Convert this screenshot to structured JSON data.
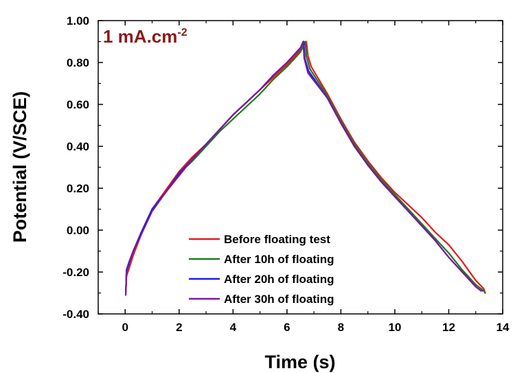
{
  "chart_data": {
    "type": "line",
    "title": "",
    "annotation": {
      "text": "1 mA.cm",
      "superscript": "-2",
      "color": "#8B1A1A"
    },
    "xlabel": "Time (s)",
    "ylabel": "Potential (V/SCE)",
    "xlim": [
      -1,
      14
    ],
    "ylim": [
      -0.4,
      1.0
    ],
    "xticks": [
      0,
      2,
      4,
      6,
      8,
      10,
      12,
      14
    ],
    "xtick_labels": [
      "0",
      "2",
      "4",
      "6",
      "8",
      "10",
      "12",
      "14"
    ],
    "yticks": [
      -0.4,
      -0.2,
      0.0,
      0.2,
      0.4,
      0.6,
      0.8,
      1.0
    ],
    "ytick_labels": [
      "-0.40",
      "-0.20",
      "0.00",
      "0.20",
      "0.40",
      "0.60",
      "0.80",
      "1.00"
    ],
    "grid": false,
    "legend_position": "bottom-center",
    "series": [
      {
        "name": "Before floating test",
        "color": "#e8191a",
        "x": [
          0.02,
          0.05,
          0.15,
          0.3,
          0.6,
          1.0,
          1.5,
          2.0,
          2.5,
          3.0,
          3.5,
          4.0,
          4.5,
          5.0,
          5.5,
          6.0,
          6.5,
          6.72,
          6.78,
          6.9,
          7.5,
          8.0,
          8.5,
          9.0,
          9.5,
          10.0,
          10.5,
          11.0,
          11.5,
          12.0,
          12.5,
          13.0,
          13.3,
          13.35
        ],
        "y": [
          -0.3,
          -0.22,
          -0.18,
          -0.12,
          -0.02,
          0.1,
          0.19,
          0.28,
          0.35,
          0.41,
          0.48,
          0.55,
          0.61,
          0.67,
          0.73,
          0.79,
          0.86,
          0.9,
          0.83,
          0.78,
          0.65,
          0.53,
          0.42,
          0.33,
          0.25,
          0.18,
          0.12,
          0.06,
          -0.01,
          -0.07,
          -0.15,
          -0.24,
          -0.28,
          -0.3
        ]
      },
      {
        "name": "After 10h of floating",
        "color": "#1f7a1f",
        "x": [
          0.02,
          0.05,
          0.15,
          0.3,
          0.6,
          1.0,
          1.5,
          2.0,
          2.5,
          3.0,
          3.5,
          4.0,
          4.5,
          5.0,
          5.5,
          6.0,
          6.5,
          6.68,
          6.72,
          6.85,
          7.5,
          8.0,
          8.5,
          9.0,
          9.5,
          10.0,
          10.5,
          11.0,
          11.5,
          12.0,
          12.5,
          13.0,
          13.3,
          13.35
        ],
        "y": [
          -0.3,
          -0.2,
          -0.16,
          -0.1,
          -0.01,
          0.1,
          0.18,
          0.27,
          0.33,
          0.4,
          0.47,
          0.53,
          0.59,
          0.65,
          0.72,
          0.78,
          0.85,
          0.9,
          0.83,
          0.77,
          0.64,
          0.52,
          0.41,
          0.32,
          0.24,
          0.17,
          0.1,
          0.03,
          -0.04,
          -0.11,
          -0.19,
          -0.26,
          -0.29,
          -0.3
        ]
      },
      {
        "name": "After 20h of floating",
        "color": "#1a1aee",
        "x": [
          0.02,
          0.05,
          0.15,
          0.3,
          0.6,
          1.0,
          1.5,
          2.0,
          2.5,
          3.0,
          3.5,
          4.0,
          4.5,
          5.0,
          5.5,
          6.0,
          6.5,
          6.62,
          6.66,
          6.8,
          7.5,
          8.0,
          8.5,
          9.0,
          9.5,
          10.0,
          10.5,
          11.0,
          11.5,
          12.0,
          12.5,
          13.0,
          13.2,
          13.25
        ],
        "y": [
          -0.3,
          -0.19,
          -0.15,
          -0.1,
          -0.01,
          0.1,
          0.18,
          0.27,
          0.34,
          0.41,
          0.48,
          0.55,
          0.61,
          0.67,
          0.74,
          0.8,
          0.87,
          0.9,
          0.82,
          0.76,
          0.63,
          0.51,
          0.4,
          0.31,
          0.23,
          0.16,
          0.09,
          0.02,
          -0.05,
          -0.13,
          -0.2,
          -0.27,
          -0.29,
          -0.29
        ]
      },
      {
        "name": "After 30h of floating",
        "color": "#7a1a9a",
        "x": [
          0.02,
          0.05,
          0.15,
          0.3,
          0.6,
          1.0,
          1.5,
          2.0,
          2.5,
          3.0,
          3.5,
          4.0,
          4.5,
          5.0,
          5.5,
          6.0,
          6.5,
          6.6,
          6.64,
          6.78,
          7.5,
          8.0,
          8.5,
          9.0,
          9.5,
          10.0,
          10.5,
          11.0,
          11.5,
          12.0,
          12.5,
          13.0,
          13.2,
          13.25
        ],
        "y": [
          -0.31,
          -0.2,
          -0.16,
          -0.1,
          -0.02,
          0.09,
          0.18,
          0.26,
          0.34,
          0.41,
          0.48,
          0.55,
          0.61,
          0.67,
          0.74,
          0.8,
          0.87,
          0.9,
          0.82,
          0.75,
          0.63,
          0.51,
          0.4,
          0.31,
          0.23,
          0.16,
          0.09,
          0.02,
          -0.05,
          -0.13,
          -0.2,
          -0.27,
          -0.29,
          -0.29
        ]
      }
    ]
  }
}
